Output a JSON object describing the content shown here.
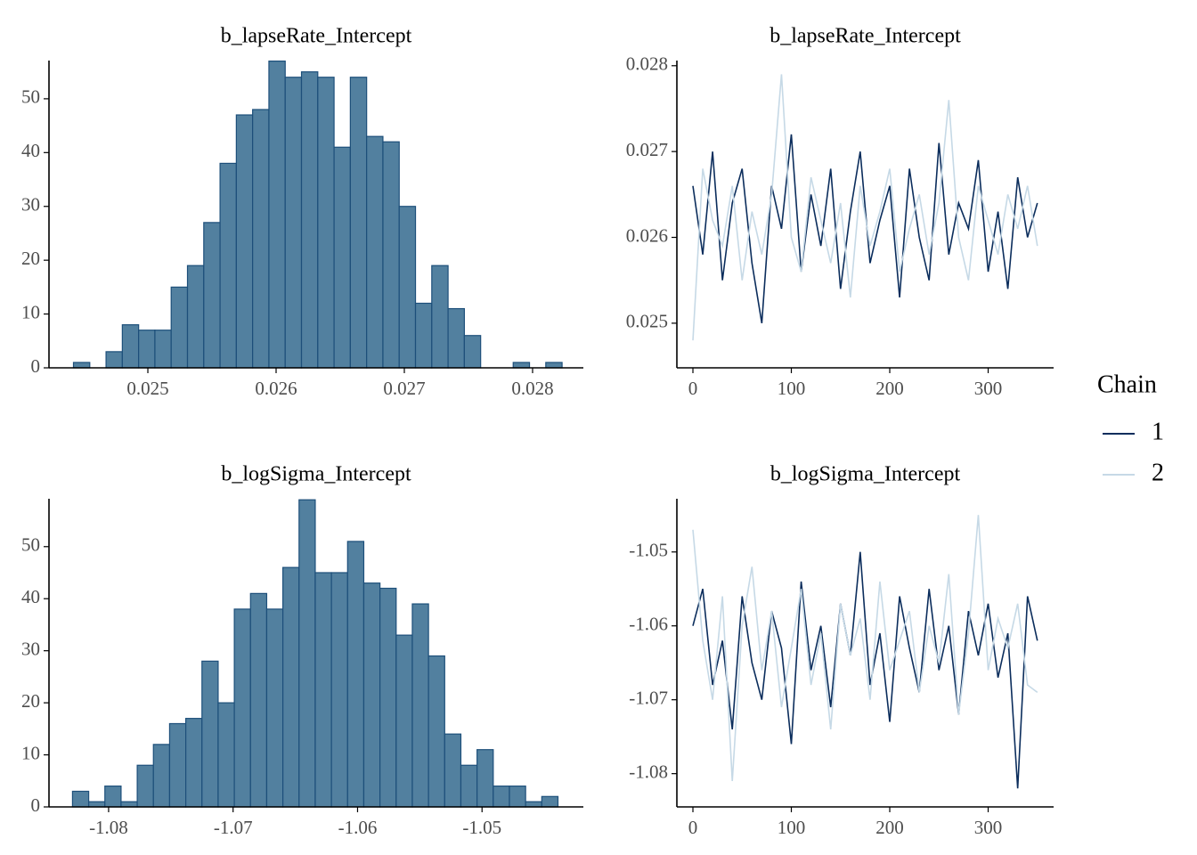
{
  "chart_data": [
    {
      "type": "histogram",
      "title": "b_lapseRate_Intercept",
      "bins": [
        0.02442,
        0.024547,
        0.024674,
        0.024801,
        0.024928,
        0.025055,
        0.025182,
        0.025309,
        0.025436,
        0.025563,
        0.02569,
        0.025817,
        0.025944,
        0.026071,
        0.026198,
        0.026325,
        0.026452,
        0.026579,
        0.026706,
        0.026833,
        0.02696,
        0.027087,
        0.027214,
        0.027341,
        0.027468,
        0.027595,
        0.027722,
        0.027849,
        0.027976,
        0.028103,
        0.02823
      ],
      "values": [
        1,
        0,
        3,
        8,
        7,
        7,
        15,
        19,
        27,
        38,
        47,
        48,
        57,
        54,
        55,
        54,
        41,
        54,
        43,
        42,
        30,
        12,
        19,
        11,
        6,
        0,
        0,
        1,
        0,
        1
      ],
      "color": "#52809f",
      "edge_color": "#1d4f7a",
      "xlim": [
        0.024229,
        0.028396
      ],
      "xticks": [
        0.025,
        0.026,
        0.027,
        0.028
      ],
      "ylim": [
        0,
        57.1
      ],
      "yticks": [
        0,
        10,
        20,
        30,
        40,
        50
      ]
    },
    {
      "type": "line",
      "title": "b_lapseRate_Intercept",
      "x": [
        0,
        10,
        20,
        30,
        40,
        50,
        60,
        70,
        80,
        90,
        100,
        110,
        120,
        130,
        140,
        150,
        160,
        170,
        180,
        190,
        200,
        210,
        220,
        230,
        240,
        250,
        260,
        270,
        280,
        290,
        300,
        310,
        320,
        330,
        340,
        350
      ],
      "series": [
        {
          "name": "1",
          "color": "#0b2d5c",
          "values": [
            0.0266,
            0.0258,
            0.027,
            0.0255,
            0.0264,
            0.0268,
            0.0257,
            0.025,
            0.0266,
            0.0261,
            0.0272,
            0.0256,
            0.0265,
            0.0259,
            0.0268,
            0.0254,
            0.0263,
            0.027,
            0.0257,
            0.0262,
            0.0266,
            0.0253,
            0.0268,
            0.026,
            0.0255,
            0.0271,
            0.0258,
            0.0264,
            0.0261,
            0.0269,
            0.0256,
            0.0263,
            0.0254,
            0.0267,
            0.026,
            0.0264
          ]
        },
        {
          "name": "2",
          "color": "#c6d9e6",
          "values": [
            0.0248,
            0.0268,
            0.0262,
            0.0259,
            0.0266,
            0.0255,
            0.0263,
            0.0258,
            0.0265,
            0.0279,
            0.026,
            0.0256,
            0.0267,
            0.0262,
            0.0257,
            0.0264,
            0.0253,
            0.0266,
            0.0259,
            0.0263,
            0.0268,
            0.0256,
            0.0261,
            0.0265,
            0.0258,
            0.0264,
            0.0276,
            0.026,
            0.0255,
            0.0266,
            0.0262,
            0.0258,
            0.0265,
            0.0261,
            0.0266,
            0.0259
          ]
        }
      ],
      "legend": {
        "title": "Chain",
        "position": "right"
      },
      "xlim": [
        -16.3,
        366.5
      ],
      "xticks": [
        0,
        100,
        200,
        300
      ],
      "ylim": [
        0.02448,
        0.02806
      ],
      "yticks": [
        0.025,
        0.026,
        0.027,
        0.028
      ]
    },
    {
      "type": "histogram",
      "title": "b_logSigma_Intercept",
      "bins": [
        -1.0829,
        -1.0816,
        -1.0803,
        -1.079,
        -1.0777,
        -1.0764,
        -1.0751,
        -1.0738,
        -1.0725,
        -1.0712,
        -1.0699,
        -1.0686,
        -1.0673,
        -1.066,
        -1.0647,
        -1.0634,
        -1.0621,
        -1.0608,
        -1.0595,
        -1.0582,
        -1.0569,
        -1.0556,
        -1.0543,
        -1.053,
        -1.0517,
        -1.0504,
        -1.0491,
        -1.0478,
        -1.0465,
        -1.0452,
        -1.0439
      ],
      "values": [
        3,
        1,
        4,
        1,
        8,
        12,
        16,
        17,
        28,
        20,
        38,
        41,
        38,
        46,
        59,
        45,
        45,
        51,
        43,
        42,
        33,
        39,
        29,
        14,
        8,
        11,
        4,
        4,
        1,
        2
      ],
      "color": "#52809f",
      "edge_color": "#1d4f7a",
      "xlim": [
        -1.08479,
        -1.04186
      ],
      "xticks": [
        -1.08,
        -1.07,
        -1.06,
        -1.05
      ],
      "ylim": [
        0,
        59.2
      ],
      "yticks": [
        0,
        10,
        20,
        30,
        40,
        50
      ]
    },
    {
      "type": "line",
      "title": "b_logSigma_Intercept",
      "x": [
        0,
        10,
        20,
        30,
        40,
        50,
        60,
        70,
        80,
        90,
        100,
        110,
        120,
        130,
        140,
        150,
        160,
        170,
        180,
        190,
        200,
        210,
        220,
        230,
        240,
        250,
        260,
        270,
        280,
        290,
        300,
        310,
        320,
        330,
        340,
        350
      ],
      "series": [
        {
          "color": "#0b2d5c",
          "values": [
            -1.06,
            -1.055,
            -1.068,
            -1.062,
            -1.074,
            -1.056,
            -1.065,
            -1.07,
            -1.058,
            -1.063,
            -1.076,
            -1.054,
            -1.066,
            -1.06,
            -1.071,
            -1.057,
            -1.064,
            -1.05,
            -1.068,
            -1.061,
            -1.073,
            -1.056,
            -1.063,
            -1.069,
            -1.055,
            -1.066,
            -1.06,
            -1.072,
            -1.058,
            -1.064,
            -1.057,
            -1.067,
            -1.061,
            -1.082,
            -1.056,
            -1.062
          ]
        },
        {
          "color": "#c6d9e6",
          "values": [
            -1.047,
            -1.062,
            -1.07,
            -1.056,
            -1.081,
            -1.06,
            -1.052,
            -1.066,
            -1.058,
            -1.071,
            -1.063,
            -1.055,
            -1.068,
            -1.061,
            -1.074,
            -1.057,
            -1.064,
            -1.059,
            -1.07,
            -1.054,
            -1.066,
            -1.062,
            -1.058,
            -1.069,
            -1.06,
            -1.065,
            -1.053,
            -1.072,
            -1.061,
            -1.045,
            -1.066,
            -1.059,
            -1.063,
            -1.057,
            -1.068,
            -1.069
          ]
        }
      ],
      "xlim": [
        -16.3,
        366.5
      ],
      "xticks": [
        0,
        100,
        200,
        300
      ],
      "ylim": [
        -1.0845,
        -1.0428
      ],
      "yticks": [
        -1.05,
        -1.06,
        -1.07,
        -1.08
      ]
    }
  ]
}
